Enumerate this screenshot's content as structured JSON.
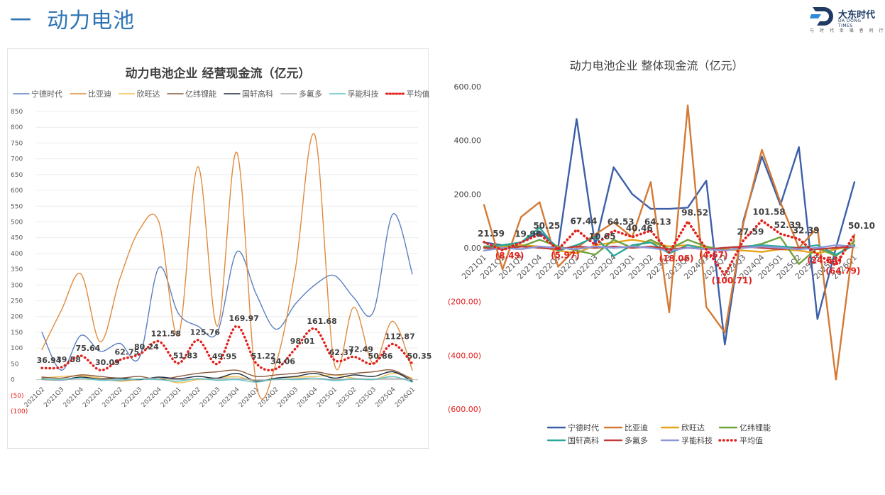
{
  "header": {
    "section_number": "一",
    "title": "动力电池",
    "logo_name": "大东时代",
    "logo_sub": "DA DONG TIMES",
    "logo_slogan": "与 时 代 幸 福 者 同 行"
  },
  "chart_data": [
    {
      "type": "line",
      "title": "动力电池企业    经营现金流（亿元）",
      "legend_position": "top",
      "ylim": [
        -100,
        850
      ],
      "ytick_step": 50,
      "grid": true,
      "ytick_labels": [
        "(100)",
        "(50)",
        "0",
        "50",
        "100",
        "150",
        "200",
        "250",
        "300",
        "350",
        "400",
        "450",
        "500",
        "550",
        "600",
        "650",
        "700",
        "750",
        "800",
        "850"
      ],
      "categories": [
        "2021Q2",
        "2021Q3",
        "2021Q4",
        "2022Q1",
        "2022Q2",
        "2022Q3",
        "2022Q4",
        "2023Q1",
        "2023Q2",
        "2023Q3",
        "2023Q4",
        "2024Q1",
        "2024Q2",
        "2024Q3",
        "2024Q4",
        "2025Q1",
        "2025Q2",
        "2025Q3",
        "2025Q4",
        "2026Q1"
      ],
      "series": [
        {
          "name": "宁德时代",
          "color": "#5b7fbf",
          "dashed": false,
          "values": [
            150,
            30,
            140,
            90,
            115,
            70,
            355,
            210,
            170,
            150,
            405,
            270,
            160,
            240,
            300,
            330,
            260,
            215,
            525,
            335
          ]
        },
        {
          "name": "比亚迪",
          "color": "#e08a3c",
          "dashed": false,
          "values": [
            95,
            220,
            335,
            120,
            320,
            475,
            500,
            140,
            675,
            170,
            720,
            -15,
            50,
            350,
            775,
            50,
            230,
            50,
            185,
            30
          ]
        },
        {
          "name": "欣旺达",
          "color": "#f2c14e",
          "dashed": false,
          "values": [
            5,
            10,
            12,
            5,
            -5,
            0,
            5,
            -10,
            0,
            5,
            10,
            -5,
            5,
            8,
            10,
            15,
            5,
            0,
            20,
            5
          ]
        },
        {
          "name": "亿纬锂能",
          "color": "#8c5a3c",
          "dashed": false,
          "values": [
            8,
            5,
            15,
            10,
            5,
            10,
            0,
            10,
            20,
            25,
            30,
            10,
            15,
            20,
            25,
            15,
            20,
            25,
            30,
            0
          ]
        },
        {
          "name": "国轩高科",
          "color": "#1f2d3d",
          "dashed": false,
          "values": [
            3,
            0,
            8,
            2,
            5,
            0,
            8,
            3,
            10,
            5,
            20,
            -5,
            5,
            10,
            20,
            5,
            15,
            10,
            25,
            -5
          ]
        },
        {
          "name": "多氟多",
          "color": "#a6a6a6",
          "dashed": false,
          "values": [
            0,
            -2,
            5,
            0,
            -3,
            2,
            5,
            0,
            2,
            3,
            5,
            -2,
            0,
            3,
            5,
            0,
            3,
            2,
            5,
            0
          ]
        },
        {
          "name": "孚能科技",
          "color": "#5fc4c4",
          "dashed": false,
          "values": [
            2,
            0,
            5,
            -2,
            0,
            2,
            0,
            -5,
            3,
            -2,
            0,
            -8,
            2,
            0,
            5,
            -3,
            2,
            0,
            10,
            -8
          ]
        },
        {
          "name": "平均值",
          "color": "#e3201c",
          "dashed": true,
          "values": [
            36.94,
            39.58,
            75.64,
            30.09,
            62.75,
            80.24,
            121.58,
            51.83,
            125.76,
            49.95,
            169.97,
            51.22,
            34.06,
            98.01,
            161.68,
            62.37,
            72.49,
            50.86,
            112.87,
            50.35
          ]
        }
      ],
      "data_labels": [
        "36.94",
        "39.58",
        "75.64",
        "30.09",
        "62.75",
        "80.24",
        "121.58",
        "51.83",
        "125.76",
        "49.95",
        "169.97",
        "51.22",
        "34.06",
        "98.01",
        "161.68",
        "62.37",
        "72.49",
        "50.86",
        "112.87",
        "50.35"
      ]
    },
    {
      "type": "line",
      "title": "动力电池企业    整体现金流（亿元）",
      "legend_position": "bottom",
      "ylim": [
        -600,
        600
      ],
      "grid": false,
      "ytick_labels": [
        "(600.00)",
        "(400.00)",
        "(200.00)",
        "0.00",
        "200.00",
        "400.00",
        "600.00"
      ],
      "ytick_values": [
        -600,
        -400,
        -200,
        0,
        200,
        400,
        600
      ],
      "categories": [
        "2021Q1",
        "2021Q2",
        "2021Q3",
        "2021Q4",
        "2022Q1",
        "2022Q2",
        "2022Q3",
        "2022Q4",
        "2023Q1",
        "2023Q2",
        "2023Q3",
        "2023Q4",
        "2024Q1",
        "2024Q2",
        "2024Q3",
        "2024Q4",
        "2025Q1",
        "2025Q2",
        "2025Q3",
        "2025Q4",
        "2026Q1"
      ],
      "category_labels": [
        "2021Q1",
        "2021Q2",
        "2021Q3",
        "2021Q4",
        "2022Q1",
        "2022Q2",
        "2022Q3",
        "2022Q4",
        "2023Q1",
        "2023Q2",
        "2023Q3",
        "2023Q4",
        "2024Q1",
        "2024Q2",
        "2024Q3",
        "2024Q4",
        "2025Q1",
        "2025Q2",
        "2025Q3",
        "2025Q4",
        "2026Q1"
      ],
      "series": [
        {
          "name": "宁德时代",
          "color": "#3c5fa8",
          "dashed": false,
          "values": [
            20,
            10,
            20,
            60,
            0,
            480,
            10,
            300,
            200,
            145,
            145,
            150,
            250,
            -360,
            100,
            340,
            160,
            375,
            -265,
            0,
            245
          ]
        },
        {
          "name": "比亚迪",
          "color": "#d47a34",
          "dashed": false,
          "values": [
            160,
            -80,
            115,
            170,
            -70,
            0,
            50,
            95,
            40,
            245,
            -240,
            530,
            -220,
            -315,
            90,
            365,
            170,
            0,
            75,
            -490,
            50
          ]
        },
        {
          "name": "欣旺达",
          "color": "#e6a31a",
          "dashed": false,
          "values": [
            0,
            5,
            10,
            5,
            -10,
            -20,
            10,
            20,
            30,
            20,
            5,
            10,
            0,
            -5,
            -10,
            -15,
            -5,
            -10,
            -20,
            -5,
            10
          ]
        },
        {
          "name": "亿纬锂能",
          "color": "#6fa33c",
          "dashed": false,
          "values": [
            5,
            10,
            5,
            30,
            5,
            -10,
            -25,
            30,
            0,
            30,
            -5,
            30,
            5,
            -10,
            0,
            15,
            40,
            -60,
            0,
            -30,
            25
          ]
        },
        {
          "name": "国轩高科",
          "color": "#2aa69a",
          "dashed": false,
          "values": [
            0,
            10,
            20,
            75,
            -10,
            10,
            40,
            -30,
            10,
            20,
            -20,
            10,
            -5,
            0,
            5,
            10,
            5,
            0,
            10,
            -25,
            10
          ]
        },
        {
          "name": "多氟多",
          "color": "#c23b3b",
          "dashed": false,
          "values": [
            0,
            -5,
            5,
            0,
            -5,
            5,
            0,
            5,
            0,
            5,
            -5,
            0,
            -5,
            0,
            5,
            0,
            -5,
            0,
            -5,
            0,
            5
          ]
        },
        {
          "name": "孚能科技",
          "color": "#8d96d6",
          "dashed": false,
          "values": [
            -10,
            0,
            -5,
            5,
            0,
            -5,
            5,
            0,
            5,
            0,
            -10,
            0,
            -5,
            -10,
            0,
            5,
            0,
            -5,
            0,
            10,
            5
          ]
        },
        {
          "name": "平均值",
          "color": "#e3201c",
          "dashed": true,
          "values": [
            21.59,
            -8.49,
            19.98,
            50.25,
            -5.97,
            67.44,
            10.65,
            64.53,
            40.46,
            64.13,
            -18.06,
            98.52,
            -4.67,
            -100.71,
            27.59,
            101.58,
            52.39,
            32.39,
            -24.54,
            -64.79,
            50.1
          ]
        }
      ],
      "data_labels": [
        "21.59",
        "(8.49)",
        "19.98",
        "50.25",
        "(5.97)",
        "67.44",
        "10.65",
        "64.53",
        "40.46",
        "64.13",
        "(18.06)",
        "98.52",
        "(4.67)",
        "(100.71)",
        "27.59",
        "101.58",
        "52.39",
        "32.39",
        "(24.54)",
        "(64.79)",
        "50.10"
      ]
    }
  ]
}
